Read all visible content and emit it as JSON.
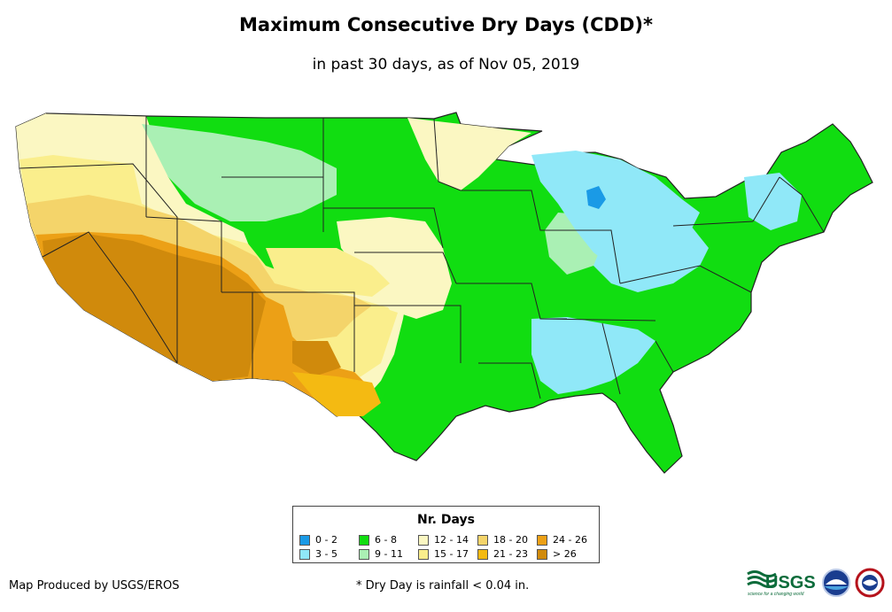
{
  "title": "Maximum Consecutive Dry Days (CDD)*",
  "subtitle": "in past 30 days, as of Nov 05, 2019",
  "legend": {
    "title": "Nr. Days",
    "items": [
      {
        "label": "0 - 2",
        "color": "#1a9ae6"
      },
      {
        "label": "3 - 5",
        "color": "#90e8f8"
      },
      {
        "label": "6 - 8",
        "color": "#11dd11"
      },
      {
        "label": "9 - 11",
        "color": "#aaf0b4"
      },
      {
        "label": "12 - 14",
        "color": "#fbf7c2"
      },
      {
        "label": "15 - 17",
        "color": "#faee8c"
      },
      {
        "label": "18 - 20",
        "color": "#f4d46a"
      },
      {
        "label": "21 - 23",
        "color": "#f4ba12"
      },
      {
        "label": "24 - 26",
        "color": "#eca016"
      },
      {
        "label": "> 26",
        "color": "#d08a0c"
      }
    ]
  },
  "credit": "Map Produced by USGS/EROS",
  "footnote": "* Dry Day is rainfall < 0.04 in.",
  "logos": {
    "usgs": "USGS",
    "usgs_tagline": "science for a changing world"
  }
}
